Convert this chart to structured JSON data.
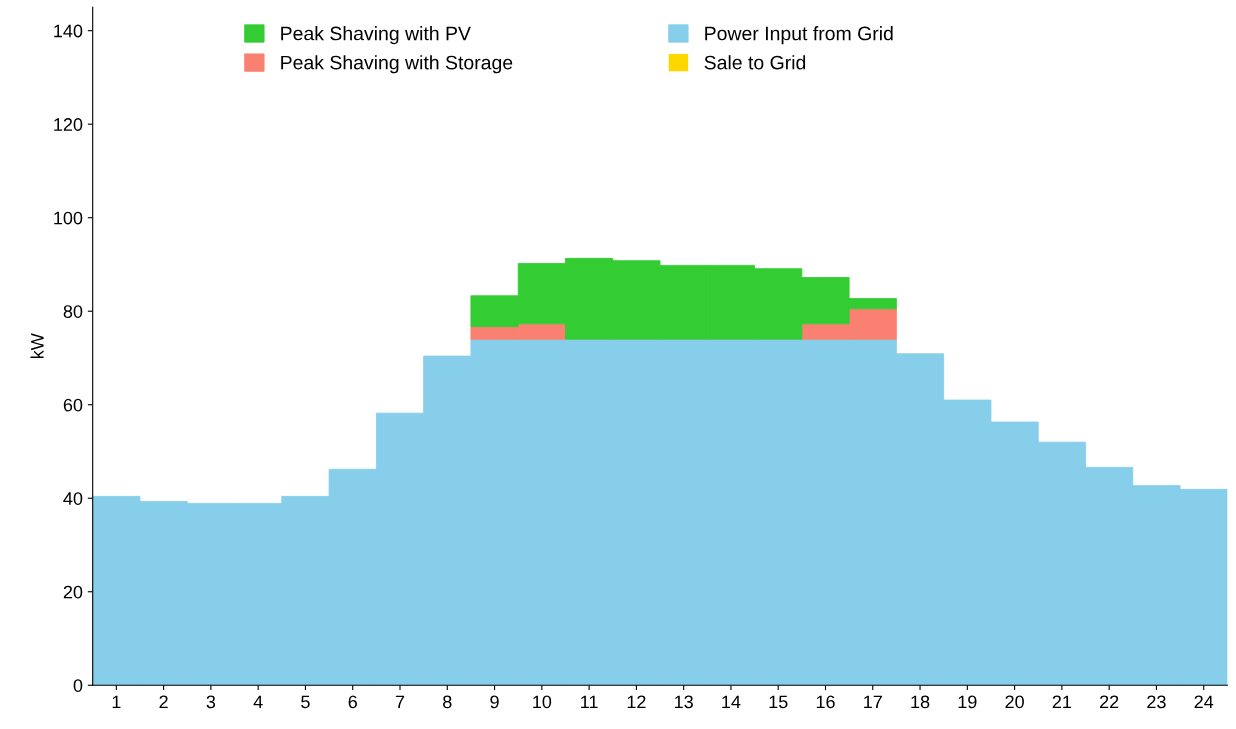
{
  "chart_data": {
    "type": "bar",
    "stacked": true,
    "ylabel": "kW",
    "categories": [
      "1",
      "2",
      "3",
      "4",
      "5",
      "6",
      "7",
      "8",
      "9",
      "10",
      "11",
      "12",
      "13",
      "14",
      "15",
      "16",
      "17",
      "18",
      "19",
      "20",
      "21",
      "22",
      "23",
      "24"
    ],
    "series": [
      {
        "name": "Power Input from Grid",
        "color": "#87ceeb",
        "values": [
          40.4,
          39.3,
          38.9,
          38.9,
          40.4,
          46.2,
          58.2,
          70.4,
          74,
          74,
          74,
          74,
          74,
          74,
          74,
          74,
          74,
          70.9,
          61.0,
          56.3,
          52.0,
          46.6,
          42.7,
          41.9
        ]
      },
      {
        "name": "Peak Shaving with Storage",
        "color": "#fa8072",
        "values": [
          null,
          null,
          null,
          null,
          null,
          null,
          null,
          null,
          2.7,
          3.3,
          null,
          null,
          null,
          null,
          null,
          3.3,
          6.5,
          null,
          null,
          null,
          null,
          null,
          null,
          null
        ]
      },
      {
        "name": "Peak Shaving with PV",
        "color": "#33cc33",
        "values": [
          null,
          null,
          null,
          null,
          null,
          null,
          null,
          null,
          6.6,
          12.9,
          17.3,
          16.8,
          15.8,
          15.8,
          15.1,
          9.9,
          2.2,
          null,
          null,
          null,
          null,
          null,
          null,
          null
        ]
      },
      {
        "name": "Sale to Grid",
        "color": "#ffd700",
        "values": [
          null,
          null,
          null,
          null,
          null,
          null,
          null,
          null,
          null,
          null,
          null,
          null,
          null,
          null,
          null,
          null,
          null,
          null,
          null,
          null,
          null,
          null,
          null,
          null
        ]
      }
    ],
    "ylim": [
      0,
      145
    ],
    "yticks": [
      0,
      20,
      40,
      60,
      80,
      100,
      120,
      140
    ],
    "grid": false,
    "legend": "top"
  }
}
